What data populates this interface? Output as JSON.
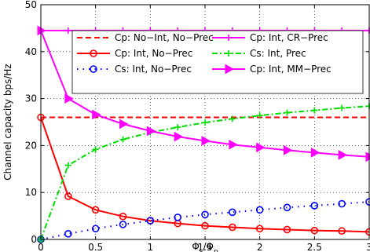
{
  "chart_data": {
    "type": "line",
    "title": "",
    "xlabel": {
      "base": "Φ",
      "sub1": "s",
      "sep": "/",
      "base2": "Φ",
      "sub2": "p"
    },
    "ylabel": "Channel capacity bps/Hz",
    "xlim": [
      0,
      3
    ],
    "ylim": [
      0,
      50
    ],
    "xticks": [
      "0",
      "0.5",
      "1",
      "1.5",
      "2",
      "2.5",
      "3"
    ],
    "yticks": [
      "0",
      "10",
      "20",
      "30",
      "40",
      "50"
    ],
    "grid": true,
    "legend_position": "top",
    "x": [
      0,
      0.25,
      0.5,
      0.75,
      1,
      1.25,
      1.5,
      1.75,
      2,
      2.25,
      2.5,
      2.75,
      3
    ],
    "series": [
      {
        "name": "Cp: No−Int, No−Prec",
        "color": "#ff0000",
        "dash": "dashed",
        "marker": "none",
        "values": [
          26,
          26,
          26,
          26,
          26,
          26,
          26,
          26,
          26,
          26,
          26,
          26,
          26
        ]
      },
      {
        "name": "Cp: Int, CR−Prec",
        "color": "#ff00ff",
        "dash": "solid",
        "marker": "plus",
        "values": [
          44.5,
          44.5,
          44.5,
          44.5,
          44.5,
          44.5,
          44.5,
          44.5,
          44.5,
          44.5,
          44.5,
          44.5,
          44.5
        ]
      },
      {
        "name": "Cp: Int, No−Prec",
        "color": "#ff0000",
        "dash": "solid",
        "marker": "circle",
        "values": [
          26,
          9.2,
          6.3,
          4.9,
          4.0,
          3.4,
          2.9,
          2.6,
          2.3,
          2.1,
          1.9,
          1.8,
          1.6
        ]
      },
      {
        "name": "Cs: Int, Prec",
        "color": "#00dd00",
        "dash": "dashdot",
        "marker": "plus",
        "values": [
          0,
          15.8,
          19.2,
          21.3,
          22.8,
          23.9,
          24.9,
          25.7,
          26.4,
          27.0,
          27.5,
          28.0,
          28.4
        ]
      },
      {
        "name": "Cs: Int, No−Prec",
        "color": "#0000ff",
        "dash": "dotted",
        "marker": "circle",
        "values": [
          0,
          1.2,
          2.3,
          3.2,
          4.0,
          4.7,
          5.3,
          5.8,
          6.3,
          6.8,
          7.2,
          7.6,
          8.0
        ]
      },
      {
        "name": "Cp: Int, MM−Prec",
        "color": "#ff00ff",
        "dash": "solid",
        "marker": "triangle",
        "values": [
          44.5,
          30.0,
          26.6,
          24.6,
          23.1,
          21.9,
          21.0,
          20.2,
          19.6,
          19.0,
          18.5,
          18.0,
          17.6
        ]
      }
    ]
  }
}
